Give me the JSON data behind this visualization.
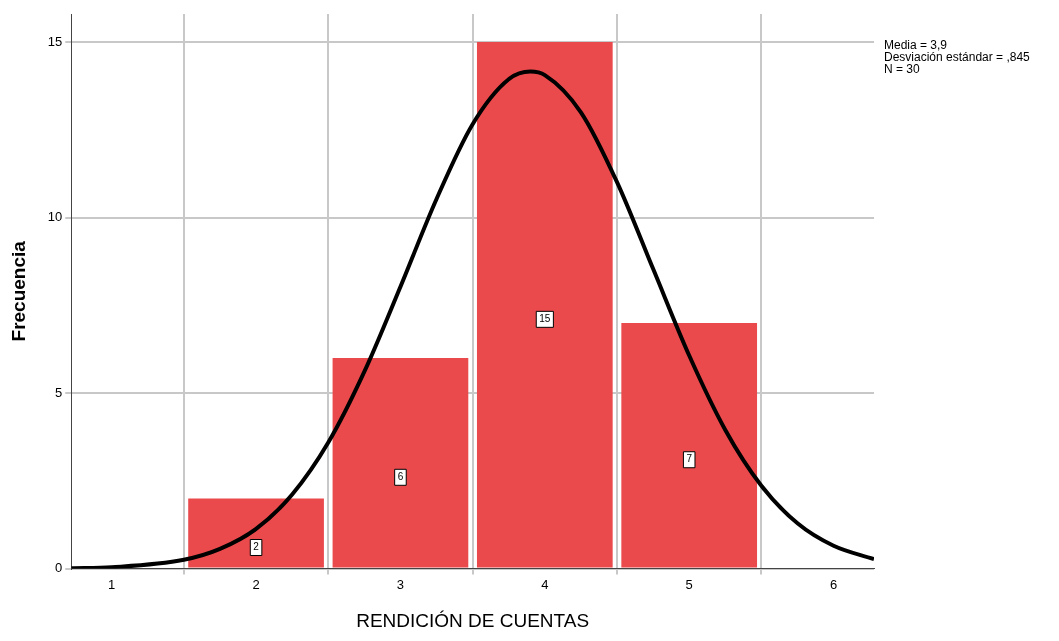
{
  "chart_data": {
    "type": "histogram",
    "xlabel": "RENDICIÓN DE CUENTAS",
    "ylabel": "Frecuencia",
    "bins": [
      1.5,
      2.5,
      3.5,
      4.5,
      5.5
    ],
    "values": [
      2,
      6,
      15,
      7
    ],
    "color": "#eb4a4d",
    "value_labels": [
      "2",
      "6",
      "15",
      "7"
    ],
    "series": [
      {
        "type": "line",
        "color": "#000000",
        "x": [
          0.72,
          1,
          1.5,
          1.75,
          2,
          2.25,
          2.5,
          2.75,
          3,
          3.25,
          3.5,
          3.75,
          3.9,
          4,
          4.25,
          4.5,
          4.75,
          5,
          5.25,
          5.5,
          5.75,
          6,
          6.28
        ],
        "values": [
          0.01,
          0.04,
          0.25,
          0.56,
          1.13,
          2.11,
          3.59,
          5.61,
          8.03,
          10.53,
          12.66,
          13.94,
          14.16,
          14.06,
          13.0,
          11.01,
          8.54,
          6.07,
          3.95,
          2.36,
          1.29,
          0.65,
          0.27
        ]
      }
    ],
    "xlim": [
      0.72,
      6.28
    ],
    "xticks": [
      1,
      2,
      3,
      4,
      5,
      6
    ],
    "ylim": [
      0,
      15.8
    ],
    "yticks": [
      0,
      5,
      10,
      15
    ],
    "grid": true,
    "legend": false,
    "marker": "none",
    "annotations": [
      "Media = 3,9",
      "Desviación estándar = ,845",
      "N = 30"
    ]
  }
}
